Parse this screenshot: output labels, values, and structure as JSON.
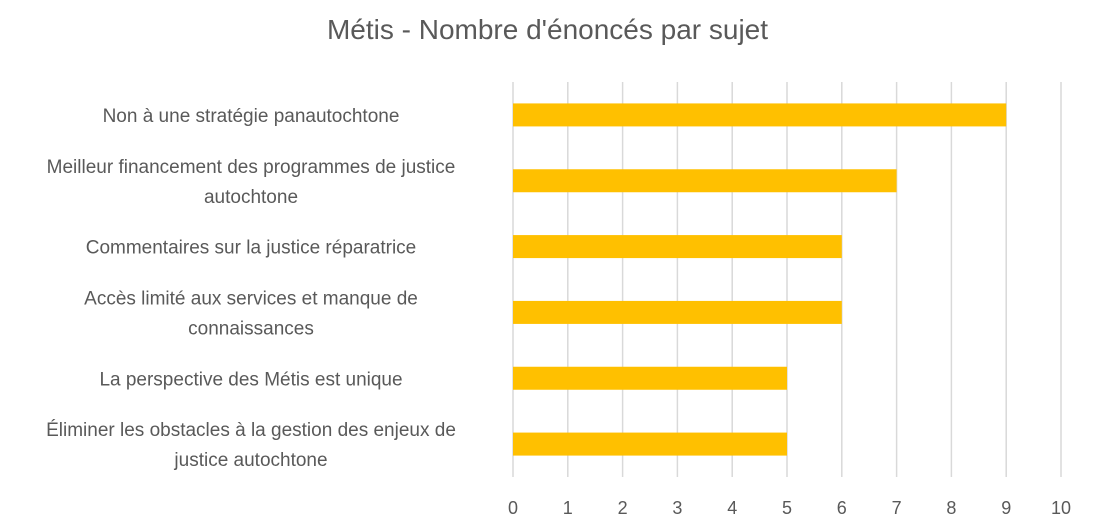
{
  "chart_data": {
    "type": "bar",
    "orientation": "horizontal",
    "title": "Métis - Nombre d'énoncés par sujet",
    "categories": [
      [
        "Non à une stratégie panautochtone"
      ],
      [
        "Meilleur financement des programmes de justice",
        "autochtone"
      ],
      [
        "Commentaires sur la justice réparatrice"
      ],
      [
        "Accès limité aux services et manque de",
        "connaissances"
      ],
      [
        "La perspective des Métis est unique"
      ],
      [
        "Éliminer les obstacles à la gestion des enjeux de",
        "justice autochtone"
      ]
    ],
    "values": [
      9,
      7,
      6,
      6,
      5,
      5
    ],
    "xlim": [
      0,
      10
    ],
    "xticks": [
      "0",
      "1",
      "2",
      "3",
      "4",
      "5",
      "6",
      "7",
      "8",
      "9",
      "10"
    ],
    "grid": true,
    "bar_color": "#FFC000",
    "grid_color": "#D9D9D9"
  }
}
